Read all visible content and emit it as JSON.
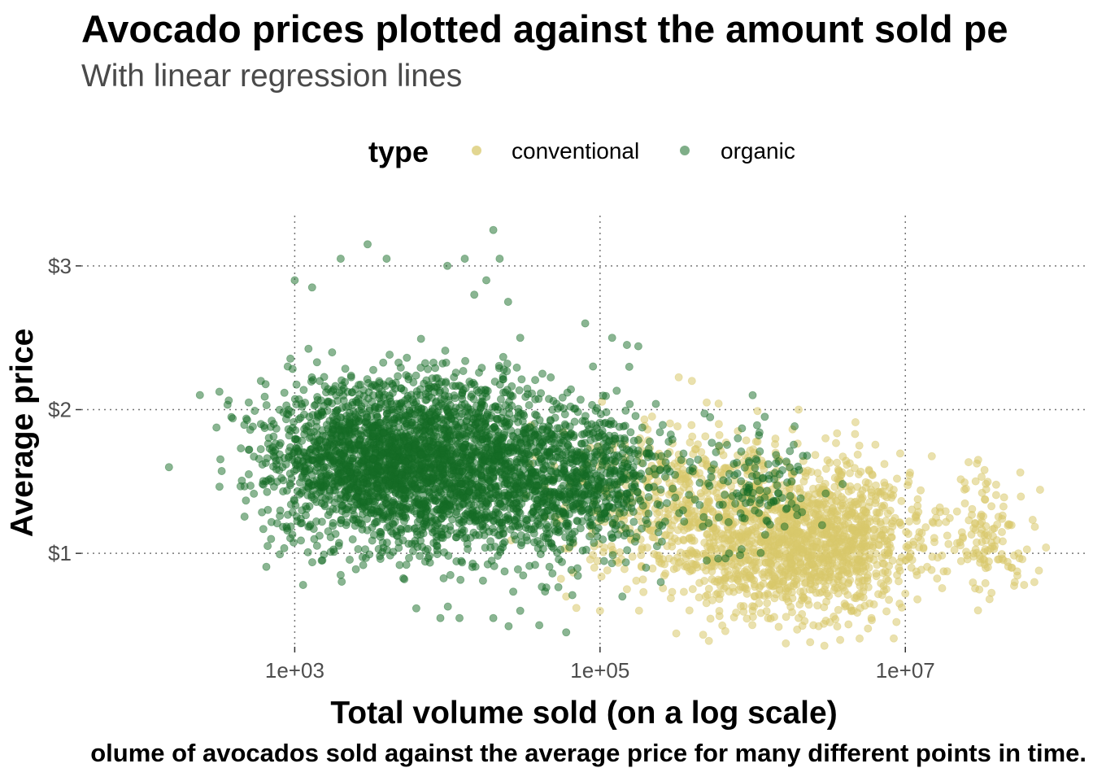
{
  "chart_data": {
    "type": "scatter",
    "title": "Avocado prices plotted against the amount sold pe",
    "subtitle": "With linear regression lines",
    "caption": "olume of avocados sold against the average price for many different points in time.",
    "xlabel": "Total volume sold (on a log scale)",
    "ylabel": "Average price",
    "x_scale": "log10",
    "xlim": [
      40,
      150000000
    ],
    "ylim": [
      0.35,
      3.35
    ],
    "x_ticks": [
      {
        "value": 1000,
        "label": "1e+03"
      },
      {
        "value": 100000,
        "label": "1e+05"
      },
      {
        "value": 10000000,
        "label": "1e+07"
      }
    ],
    "y_ticks": [
      {
        "value": 1,
        "label": "$1"
      },
      {
        "value": 2,
        "label": "$2"
      },
      {
        "value": 3,
        "label": "$3"
      }
    ],
    "grid": true,
    "legend": {
      "title": "type",
      "position": "top"
    },
    "series": [
      {
        "name": "conventional",
        "color": "#d8c86c",
        "approx_distribution": {
          "note_points_estimated_from_visible_cloud": true,
          "clusters": [
            {
              "x_center": 400000,
              "y_center": 1.35,
              "x_spread_log10": 0.45,
              "y_spread": 0.3,
              "count": 500
            },
            {
              "x_center": 1200000,
              "y_center": 1.05,
              "x_spread_log10": 0.35,
              "y_spread": 0.25,
              "count": 700
            },
            {
              "x_center": 3500000,
              "y_center": 1.1,
              "x_spread_log10": 0.3,
              "y_spread": 0.25,
              "count": 700
            },
            {
              "x_center": 35000000,
              "y_center": 1.1,
              "x_spread_log10": 0.15,
              "y_spread": 0.2,
              "count": 120
            }
          ]
        },
        "points": [
          [
            60000,
            0.7
          ],
          [
            70000,
            0.62
          ],
          [
            100000,
            0.6
          ],
          [
            150000,
            0.75
          ],
          [
            250000,
            1.6
          ],
          [
            400000,
            2.2
          ],
          [
            500000,
            2.05
          ],
          [
            600000,
            1.9
          ],
          [
            800000,
            1.85
          ],
          [
            1500000,
            1.65
          ],
          [
            2000000,
            2.0
          ],
          [
            3000000,
            1.8
          ],
          [
            5000000,
            1.75
          ],
          [
            6000000,
            1.4
          ],
          [
            8000000,
            1.15
          ],
          [
            10000000,
            0.72
          ],
          [
            12000000,
            0.68
          ],
          [
            1000000,
            0.6
          ],
          [
            2000000,
            0.55
          ],
          [
            2500000,
            0.5
          ],
          [
            4000000,
            0.65
          ],
          [
            6000000,
            0.55
          ],
          [
            30000000,
            1.65
          ],
          [
            33000000,
            1.58
          ],
          [
            25000000,
            1.45
          ],
          [
            40000000,
            1.2
          ],
          [
            50000000,
            0.9
          ],
          [
            55000000,
            1.0
          ],
          [
            60000000,
            0.78
          ],
          [
            70000000,
            0.8
          ],
          [
            75000000,
            0.88
          ],
          [
            28000000,
            1.0
          ]
        ]
      },
      {
        "name": "organic",
        "color": "#156c26",
        "approx_distribution": {
          "note_points_estimated_from_visible_cloud": true,
          "clusters": [
            {
              "x_center": 3000,
              "y_center": 1.65,
              "x_spread_log10": 0.35,
              "y_spread": 0.28,
              "count": 1400
            },
            {
              "x_center": 12000,
              "y_center": 1.6,
              "x_spread_log10": 0.4,
              "y_spread": 0.3,
              "count": 1600
            },
            {
              "x_center": 70000,
              "y_center": 1.5,
              "x_spread_log10": 0.3,
              "y_spread": 0.25,
              "count": 700
            },
            {
              "x_center": 1000000,
              "y_center": 1.5,
              "x_spread_log10": 0.2,
              "y_spread": 0.2,
              "count": 120
            }
          ]
        },
        "points": [
          [
            150,
            1.6
          ],
          [
            500,
            1.55
          ],
          [
            500,
            1.72
          ],
          [
            500,
            2.05
          ],
          [
            600,
            2.2
          ],
          [
            600,
            1.9
          ],
          [
            700,
            1.1
          ],
          [
            700,
            1.5
          ],
          [
            900,
            2.3
          ],
          [
            1000,
            2.9
          ],
          [
            1300,
            2.85
          ],
          [
            2000,
            3.05
          ],
          [
            3000,
            3.15
          ],
          [
            4000,
            3.05
          ],
          [
            10000,
            3.0
          ],
          [
            13000,
            3.05
          ],
          [
            20000,
            3.25
          ],
          [
            22000,
            3.05
          ],
          [
            15000,
            2.8
          ],
          [
            18000,
            2.9
          ],
          [
            25000,
            2.75
          ],
          [
            30000,
            2.5
          ],
          [
            80000,
            2.6
          ],
          [
            120000,
            2.5
          ],
          [
            150000,
            2.45
          ],
          [
            90000,
            2.3
          ],
          [
            40000,
            0.5
          ],
          [
            60000,
            0.45
          ],
          [
            12000,
            0.55
          ],
          [
            20000,
            0.55
          ],
          [
            30000,
            0.6
          ],
          [
            9000,
            0.55
          ],
          [
            2000,
            0.85
          ],
          [
            1500,
            0.95
          ],
          [
            140000,
            0.7
          ],
          [
            200000,
            0.9
          ],
          [
            500000,
            0.95
          ],
          [
            700000,
            1.0
          ],
          [
            1000000,
            2.1
          ],
          [
            1200000,
            1.95
          ],
          [
            800000,
            1.8
          ],
          [
            1500000,
            1.55
          ],
          [
            1800000,
            1.5
          ],
          [
            1300000,
            1.2
          ],
          [
            900000,
            1.35
          ],
          [
            600000,
            1.25
          ],
          [
            350000,
            1.3
          ],
          [
            250000,
            0.8
          ]
        ]
      }
    ]
  }
}
